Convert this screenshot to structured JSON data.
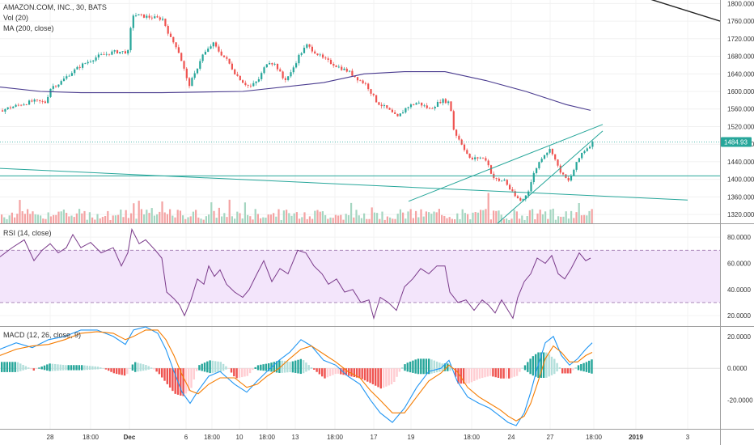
{
  "header": {
    "symbol_line": "AMAZON.COM, INC., 30, BATS",
    "vol_line": "Vol (20)",
    "ma_line": "MA (200, close)"
  },
  "rsi_pane": {
    "label": "RSI (14, close)"
  },
  "macd_pane": {
    "label": "MACD (12, 26, close, 9)"
  },
  "colors": {
    "up": "#26a69a",
    "down": "#ef5350",
    "ma": "#4a3b8f",
    "trend": "#26a69a",
    "rsi": "#7a3a8a",
    "rsi_band": "#f3e5fb",
    "macd": "#2196f3",
    "signal": "#f57c00"
  },
  "chart_data": [
    {
      "type": "line",
      "name": "price",
      "y_ticks": [
        "1800.000",
        "1760.000",
        "1720.000",
        "1680.000",
        "1640.000",
        "1600.000",
        "1560.000",
        "1520.000",
        "1480.000",
        "1440.000",
        "1400.000",
        "1360.000",
        "1320.000"
      ],
      "ylim": [
        1300,
        1808
      ],
      "last_price_label": "1484.93",
      "last_price": 1484.93,
      "horizontal_level": 1408,
      "x_ticks": [
        "28",
        "18:00",
        "Dec",
        "6",
        "18:00",
        "10",
        "18:00",
        "13",
        "18:00",
        "17",
        "19",
        "18:00",
        "24",
        "27",
        "18:00",
        "2019",
        "3"
      ],
      "close_path": [
        [
          0,
          1557
        ],
        [
          20,
          1568
        ],
        [
          40,
          1578
        ],
        [
          55,
          1575
        ],
        [
          62,
          1610
        ],
        [
          72,
          1618
        ],
        [
          85,
          1640
        ],
        [
          100,
          1660
        ],
        [
          120,
          1680
        ],
        [
          140,
          1690
        ],
        [
          158,
          1690
        ],
        [
          162,
          1775
        ],
        [
          180,
          1770
        ],
        [
          200,
          1765
        ],
        [
          210,
          1720
        ],
        [
          218,
          1700
        ],
        [
          225,
          1660
        ],
        [
          232,
          1612
        ],
        [
          240,
          1640
        ],
        [
          248,
          1680
        ],
        [
          256,
          1695
        ],
        [
          262,
          1710
        ],
        [
          270,
          1690
        ],
        [
          280,
          1670
        ],
        [
          290,
          1640
        ],
        [
          300,
          1620
        ],
        [
          308,
          1610
        ],
        [
          318,
          1625
        ],
        [
          330,
          1670
        ],
        [
          340,
          1660
        ],
        [
          350,
          1625
        ],
        [
          358,
          1640
        ],
        [
          368,
          1680
        ],
        [
          378,
          1705
        ],
        [
          388,
          1690
        ],
        [
          398,
          1675
        ],
        [
          408,
          1665
        ],
        [
          418,
          1655
        ],
        [
          430,
          1645
        ],
        [
          440,
          1630
        ],
        [
          452,
          1615
        ],
        [
          460,
          1590
        ],
        [
          465,
          1575
        ],
        [
          478,
          1560
        ],
        [
          490,
          1540
        ],
        [
          502,
          1565
        ],
        [
          515,
          1575
        ],
        [
          530,
          1560
        ],
        [
          545,
          1580
        ],
        [
          555,
          1575
        ],
        [
          560,
          1510
        ],
        [
          570,
          1480
        ],
        [
          580,
          1445
        ],
        [
          592,
          1450
        ],
        [
          600,
          1445
        ],
        [
          608,
          1405
        ],
        [
          616,
          1395
        ],
        [
          622,
          1400
        ],
        [
          630,
          1375
        ],
        [
          636,
          1360
        ],
        [
          644,
          1350
        ],
        [
          652,
          1375
        ],
        [
          660,
          1420
        ],
        [
          670,
          1455
        ],
        [
          680,
          1470
        ],
        [
          688,
          1430
        ],
        [
          695,
          1408
        ],
        [
          702,
          1395
        ],
        [
          710,
          1430
        ],
        [
          718,
          1460
        ],
        [
          728,
          1478
        ],
        [
          732,
          1485
        ]
      ],
      "ma200_path": [
        [
          0,
          1610
        ],
        [
          50,
          1600
        ],
        [
          100,
          1597
        ],
        [
          200,
          1597
        ],
        [
          300,
          1600
        ],
        [
          400,
          1620
        ],
        [
          450,
          1640
        ],
        [
          500,
          1645
        ],
        [
          550,
          1645
        ],
        [
          600,
          1625
        ],
        [
          650,
          1600
        ],
        [
          700,
          1570
        ],
        [
          730,
          1557
        ]
      ],
      "upper_right_line": [
        [
          760,
          1835
        ],
        [
          890,
          1760
        ]
      ],
      "trendlines": [
        [
          [
            0,
            1425
          ],
          [
            850,
            1353
          ]
        ],
        [
          [
            505,
            1350
          ],
          [
            745,
            1525
          ]
        ],
        [
          [
            615,
            1300
          ],
          [
            745,
            1510
          ]
        ]
      ]
    },
    {
      "type": "bar",
      "name": "volume",
      "note": "relative volume bars, 0-1 scale"
    },
    {
      "type": "line",
      "name": "rsi",
      "y_ticks": [
        "80.0000",
        "60.0000",
        "40.0000",
        "20.0000"
      ],
      "ylim": [
        12,
        90
      ],
      "upper_band": 70,
      "lower_band": 30,
      "path": [
        [
          0,
          65
        ],
        [
          15,
          72
        ],
        [
          30,
          78
        ],
        [
          42,
          62
        ],
        [
          52,
          70
        ],
        [
          62,
          75
        ],
        [
          72,
          68
        ],
        [
          82,
          72
        ],
        [
          90,
          82
        ],
        [
          100,
          72
        ],
        [
          112,
          76
        ],
        [
          125,
          68
        ],
        [
          140,
          72
        ],
        [
          150,
          58
        ],
        [
          158,
          68
        ],
        [
          163,
          86
        ],
        [
          172,
          75
        ],
        [
          180,
          78
        ],
        [
          192,
          70
        ],
        [
          200,
          64
        ],
        [
          206,
          38
        ],
        [
          215,
          33
        ],
        [
          222,
          28
        ],
        [
          228,
          20
        ],
        [
          236,
          32
        ],
        [
          244,
          48
        ],
        [
          252,
          44
        ],
        [
          258,
          58
        ],
        [
          265,
          50
        ],
        [
          272,
          55
        ],
        [
          280,
          44
        ],
        [
          290,
          38
        ],
        [
          300,
          34
        ],
        [
          308,
          40
        ],
        [
          316,
          50
        ],
        [
          326,
          62
        ],
        [
          336,
          46
        ],
        [
          346,
          56
        ],
        [
          356,
          52
        ],
        [
          368,
          70
        ],
        [
          378,
          68
        ],
        [
          388,
          58
        ],
        [
          398,
          52
        ],
        [
          406,
          44
        ],
        [
          416,
          48
        ],
        [
          426,
          38
        ],
        [
          436,
          40
        ],
        [
          446,
          30
        ],
        [
          456,
          32
        ],
        [
          462,
          18
        ],
        [
          470,
          34
        ],
        [
          480,
          30
        ],
        [
          490,
          24
        ],
        [
          500,
          42
        ],
        [
          510,
          48
        ],
        [
          520,
          56
        ],
        [
          530,
          52
        ],
        [
          540,
          58
        ],
        [
          550,
          58
        ],
        [
          556,
          38
        ],
        [
          566,
          30
        ],
        [
          576,
          32
        ],
        [
          586,
          24
        ],
        [
          596,
          32
        ],
        [
          604,
          28
        ],
        [
          612,
          22
        ],
        [
          620,
          32
        ],
        [
          628,
          24
        ],
        [
          634,
          18
        ],
        [
          640,
          34
        ],
        [
          648,
          46
        ],
        [
          656,
          52
        ],
        [
          664,
          64
        ],
        [
          674,
          60
        ],
        [
          682,
          66
        ],
        [
          690,
          52
        ],
        [
          698,
          48
        ],
        [
          706,
          56
        ],
        [
          716,
          68
        ],
        [
          724,
          62
        ],
        [
          730,
          64
        ]
      ]
    },
    {
      "type": "line",
      "name": "macd",
      "y_ticks": [
        "20.0000",
        "0.0000",
        "-20.0000"
      ],
      "ylim": [
        -38,
        26
      ],
      "macd_path": [
        [
          0,
          12
        ],
        [
          20,
          16
        ],
        [
          40,
          13
        ],
        [
          60,
          18
        ],
        [
          80,
          20
        ],
        [
          100,
          24
        ],
        [
          120,
          24
        ],
        [
          140,
          20
        ],
        [
          155,
          15
        ],
        [
          165,
          24
        ],
        [
          180,
          26
        ],
        [
          195,
          22
        ],
        [
          205,
          12
        ],
        [
          215,
          -2
        ],
        [
          225,
          -15
        ],
        [
          235,
          -22
        ],
        [
          245,
          -14
        ],
        [
          258,
          -5
        ],
        [
          272,
          -2
        ],
        [
          290,
          -10
        ],
        [
          305,
          -15
        ],
        [
          318,
          -8
        ],
        [
          330,
          -2
        ],
        [
          345,
          5
        ],
        [
          358,
          10
        ],
        [
          372,
          18
        ],
        [
          385,
          14
        ],
        [
          400,
          5
        ],
        [
          415,
          2
        ],
        [
          430,
          -5
        ],
        [
          445,
          -10
        ],
        [
          458,
          -20
        ],
        [
          470,
          -28
        ],
        [
          485,
          -34
        ],
        [
          500,
          -25
        ],
        [
          515,
          -12
        ],
        [
          530,
          -2
        ],
        [
          545,
          0
        ],
        [
          555,
          5
        ],
        [
          565,
          -8
        ],
        [
          578,
          -18
        ],
        [
          592,
          -22
        ],
        [
          605,
          -25
        ],
        [
          618,
          -30
        ],
        [
          628,
          -34
        ],
        [
          638,
          -36
        ],
        [
          648,
          -28
        ],
        [
          656,
          -15
        ],
        [
          664,
          0
        ],
        [
          674,
          16
        ],
        [
          684,
          20
        ],
        [
          694,
          8
        ],
        [
          704,
          2
        ],
        [
          714,
          6
        ],
        [
          724,
          12
        ],
        [
          732,
          16
        ]
      ],
      "signal_path": [
        [
          0,
          8
        ],
        [
          20,
          12
        ],
        [
          40,
          14
        ],
        [
          60,
          15
        ],
        [
          80,
          18
        ],
        [
          100,
          22
        ],
        [
          120,
          23
        ],
        [
          140,
          22
        ],
        [
          155,
          18
        ],
        [
          165,
          20
        ],
        [
          180,
          24
        ],
        [
          195,
          24
        ],
        [
          205,
          18
        ],
        [
          215,
          8
        ],
        [
          225,
          -4
        ],
        [
          235,
          -14
        ],
        [
          245,
          -16
        ],
        [
          258,
          -10
        ],
        [
          272,
          -6
        ],
        [
          290,
          -6
        ],
        [
          305,
          -12
        ],
        [
          318,
          -10
        ],
        [
          330,
          -5
        ],
        [
          345,
          0
        ],
        [
          358,
          6
        ],
        [
          372,
          12
        ],
        [
          385,
          14
        ],
        [
          400,
          9
        ],
        [
          415,
          4
        ],
        [
          430,
          -2
        ],
        [
          445,
          -6
        ],
        [
          458,
          -14
        ],
        [
          470,
          -20
        ],
        [
          485,
          -28
        ],
        [
          500,
          -28
        ],
        [
          515,
          -18
        ],
        [
          530,
          -8
        ],
        [
          545,
          -3
        ],
        [
          555,
          2
        ],
        [
          565,
          -2
        ],
        [
          578,
          -12
        ],
        [
          592,
          -18
        ],
        [
          605,
          -22
        ],
        [
          618,
          -26
        ],
        [
          628,
          -30
        ],
        [
          638,
          -33
        ],
        [
          648,
          -30
        ],
        [
          656,
          -22
        ],
        [
          664,
          -10
        ],
        [
          674,
          6
        ],
        [
          684,
          14
        ],
        [
          694,
          10
        ],
        [
          704,
          4
        ],
        [
          714,
          4
        ],
        [
          724,
          8
        ],
        [
          732,
          10
        ]
      ]
    }
  ]
}
